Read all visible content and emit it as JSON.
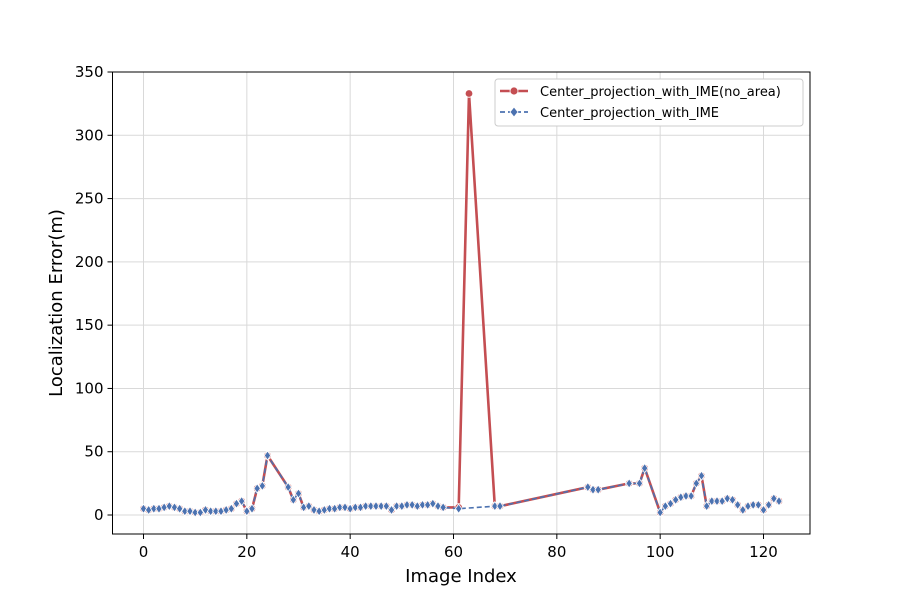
{
  "chart_data": {
    "type": "line",
    "xlabel": "Image Index",
    "ylabel": "Localization Error(m)",
    "xlim": [
      -6,
      129
    ],
    "ylim": [
      -15,
      350
    ],
    "xticks": [
      0,
      20,
      40,
      60,
      80,
      100,
      120
    ],
    "yticks": [
      0,
      50,
      100,
      150,
      200,
      250,
      300,
      350
    ],
    "grid": true,
    "legend_position": "top-right",
    "colors": {
      "no_area": "#c44e52",
      "with_ime": "#4c72b0"
    },
    "series": [
      {
        "name": "Center_projection_with_IME(no_area)",
        "x": [
          0,
          1,
          2,
          3,
          4,
          5,
          6,
          7,
          8,
          9,
          10,
          11,
          12,
          13,
          14,
          15,
          16,
          17,
          18,
          19,
          20,
          21,
          22,
          23,
          24,
          28,
          29,
          30,
          31,
          32,
          33,
          34,
          35,
          36,
          37,
          38,
          39,
          40,
          41,
          42,
          43,
          44,
          45,
          46,
          47,
          48,
          49,
          50,
          51,
          52,
          53,
          54,
          55,
          56,
          57,
          58,
          61,
          63,
          68,
          69,
          86,
          87,
          88,
          94,
          96,
          97,
          100,
          101,
          102,
          103,
          104,
          105,
          106,
          107,
          108,
          109,
          110,
          111,
          112,
          113,
          114,
          115,
          116,
          117,
          118,
          119,
          120,
          121,
          122,
          123
        ],
        "y": [
          5,
          4,
          5,
          5,
          6,
          7,
          6,
          5,
          3,
          3,
          2,
          2,
          4,
          3,
          3,
          3,
          4,
          5,
          9,
          11,
          3,
          5,
          21,
          23,
          47,
          22,
          12,
          17,
          6,
          7,
          4,
          3,
          4,
          5,
          5,
          6,
          6,
          5,
          6,
          6,
          7,
          7,
          7,
          7,
          7,
          4,
          7,
          7,
          8,
          8,
          7,
          8,
          8,
          9,
          7,
          6,
          6,
          333,
          7,
          7,
          22,
          20,
          20,
          25,
          25,
          37,
          2,
          7,
          9,
          12,
          14,
          15,
          15,
          25,
          31,
          7,
          11,
          11,
          11,
          13,
          12,
          8,
          4,
          7,
          8,
          8,
          4,
          8,
          13,
          11
        ]
      },
      {
        "name": "Center_projection_with_IME",
        "x": [
          0,
          1,
          2,
          3,
          4,
          5,
          6,
          7,
          8,
          9,
          10,
          11,
          12,
          13,
          14,
          15,
          16,
          17,
          18,
          19,
          20,
          21,
          22,
          23,
          24,
          28,
          29,
          30,
          31,
          32,
          33,
          34,
          35,
          36,
          37,
          38,
          39,
          40,
          41,
          42,
          43,
          44,
          45,
          46,
          47,
          48,
          49,
          50,
          51,
          52,
          53,
          54,
          55,
          56,
          57,
          58,
          61,
          68,
          69,
          86,
          87,
          88,
          94,
          96,
          97,
          100,
          101,
          102,
          103,
          104,
          105,
          106,
          107,
          108,
          109,
          110,
          111,
          112,
          113,
          114,
          115,
          116,
          117,
          118,
          119,
          120,
          121,
          122,
          123
        ],
        "y": [
          5,
          4,
          5,
          5,
          6,
          7,
          6,
          5,
          3,
          3,
          2,
          2,
          4,
          3,
          3,
          3,
          4,
          5,
          9,
          11,
          3,
          5,
          21,
          23,
          47,
          22,
          12,
          17,
          6,
          7,
          4,
          3,
          4,
          5,
          5,
          6,
          6,
          5,
          6,
          6,
          7,
          7,
          7,
          7,
          7,
          4,
          7,
          7,
          8,
          8,
          7,
          8,
          8,
          9,
          7,
          6,
          5,
          7,
          7,
          22,
          20,
          20,
          25,
          25,
          37,
          2,
          7,
          9,
          12,
          14,
          15,
          15,
          25,
          31,
          7,
          11,
          11,
          11,
          13,
          12,
          8,
          4,
          7,
          8,
          8,
          4,
          8,
          13,
          11
        ]
      }
    ]
  }
}
